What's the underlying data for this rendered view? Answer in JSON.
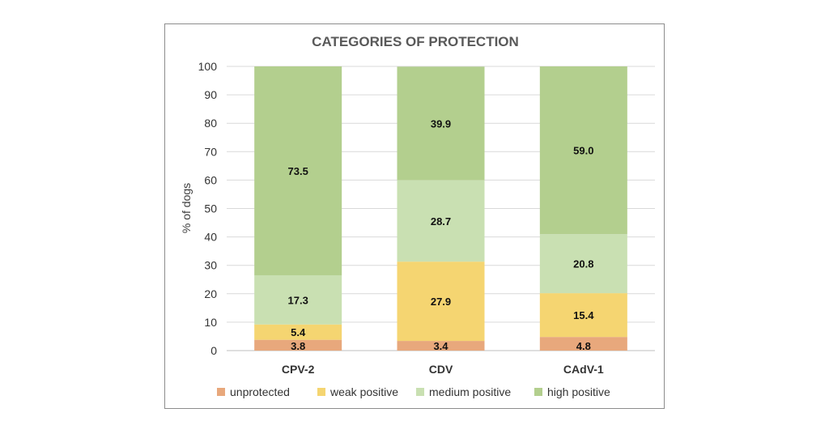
{
  "chart_data": {
    "type": "bar",
    "stacked": true,
    "title": "CATEGORIES OF PROTECTION",
    "xlabel": "",
    "ylabel": "% of dogs",
    "ylim": [
      0,
      100
    ],
    "yticks": [
      0,
      10,
      20,
      30,
      40,
      50,
      60,
      70,
      80,
      90,
      100
    ],
    "categories": [
      "CPV-2",
      "CDV",
      "CAdV-1"
    ],
    "grid": true,
    "legend_position": "bottom",
    "series": [
      {
        "name": "unprotected",
        "color": "#e8a87c",
        "values": [
          3.8,
          3.4,
          4.8
        ],
        "labels": [
          "3.8",
          "3.4",
          "4.8"
        ]
      },
      {
        "name": "weak positive",
        "color": "#f5d571",
        "values": [
          5.4,
          27.9,
          15.4
        ],
        "labels": [
          "5.4",
          "27.9",
          "15.4"
        ]
      },
      {
        "name": "medium positive",
        "color": "#c9e0b2",
        "values": [
          17.3,
          28.7,
          20.8
        ],
        "labels": [
          "17.3",
          "28.7",
          "20.8"
        ]
      },
      {
        "name": "high positive",
        "color": "#b3cf8e",
        "values": [
          73.5,
          39.9,
          59.0
        ],
        "labels": [
          "73.5",
          "39.9",
          "59.0"
        ]
      }
    ]
  }
}
